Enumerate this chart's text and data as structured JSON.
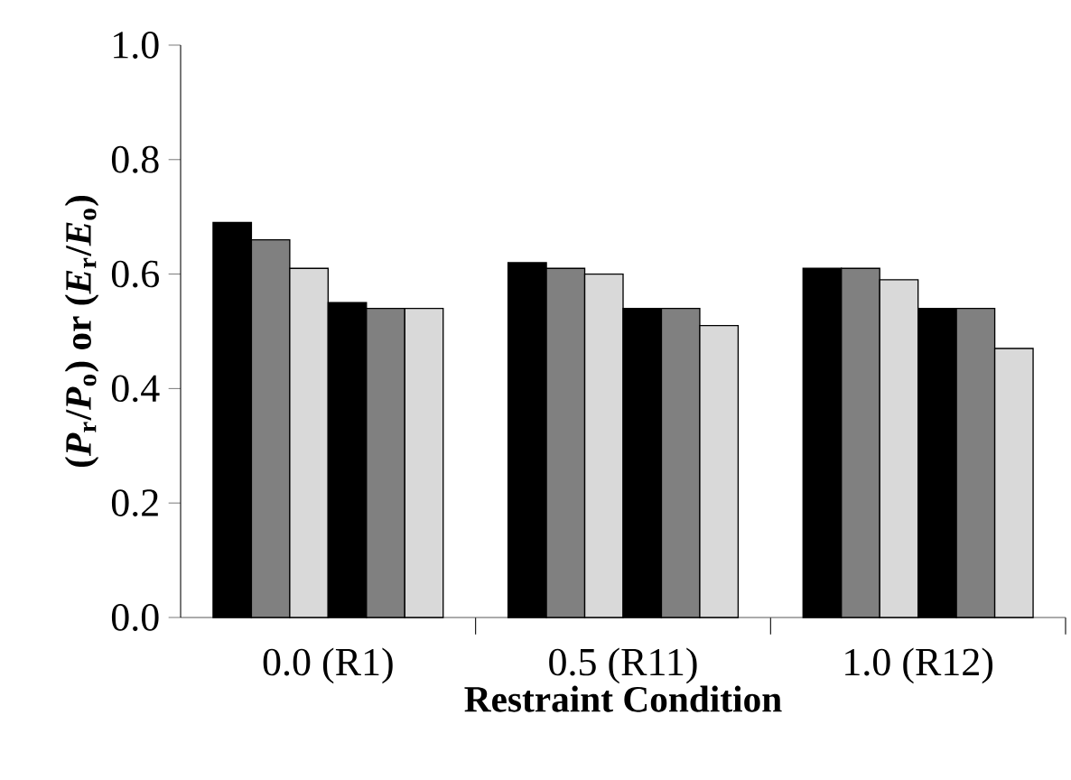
{
  "chart_data": {
    "type": "bar",
    "xlabel": "Restraint Condition",
    "ylabel": "(*P*$_{r}$/*P*$_{o}$) or (*E*$_{r}$/*E*$_{o}$)",
    "categories": [
      "0.0 (R1)",
      "0.5 (R11)",
      "1.0 (R12)"
    ],
    "series": [
      {
        "color": "#000000",
        "values": [
          0.69,
          0.62,
          0.61
        ]
      },
      {
        "color": "#808080",
        "values": [
          0.66,
          0.61,
          0.61
        ]
      },
      {
        "color": "#d9d9d9",
        "values": [
          0.61,
          0.6,
          0.59
        ]
      },
      {
        "color": "#000000",
        "values": [
          0.55,
          0.54,
          0.54
        ]
      },
      {
        "color": "#808080",
        "values": [
          0.54,
          0.54,
          0.54
        ]
      },
      {
        "color": "#d9d9d9",
        "values": [
          0.54,
          0.51,
          0.47
        ]
      }
    ],
    "ylim": [
      0,
      1
    ],
    "yticks": [
      {
        "value": 0,
        "label": "0.0"
      },
      {
        "value": 0.2,
        "label": "0.2"
      },
      {
        "value": 0.4,
        "label": "0.4"
      },
      {
        "value": 0.6,
        "label": "0.6"
      },
      {
        "value": 0.8,
        "label": "0.8"
      },
      {
        "value": 1,
        "label": "1.0"
      }
    ]
  }
}
